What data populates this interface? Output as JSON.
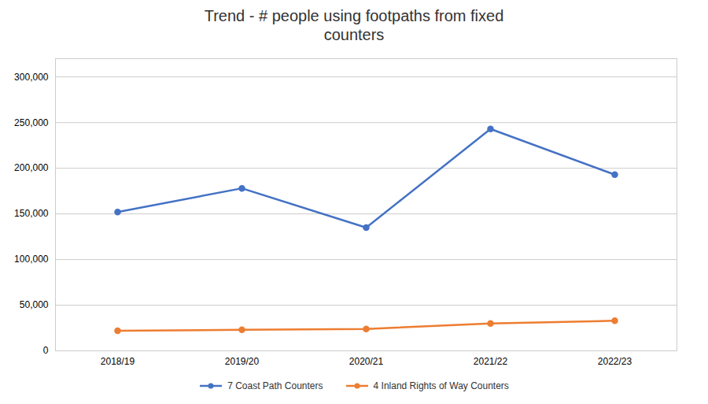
{
  "chart_data": {
    "type": "line",
    "title": "Trend - # people using footpaths from fixed\ncounters",
    "categories": [
      "2018/19",
      "2019/20",
      "2020/21",
      "2021/22",
      "2022/23"
    ],
    "series": [
      {
        "name": "7 Coast Path Counters",
        "color": "#4472C4",
        "marker": "circle",
        "values": [
          152000,
          178000,
          135000,
          243000,
          193000
        ]
      },
      {
        "name": "4 Inland Rights of Way Counters",
        "color": "#ED7D31",
        "marker": "circle",
        "values": [
          22000,
          23000,
          24000,
          30000,
          33000
        ]
      }
    ],
    "ylim": [
      0,
      320000
    ],
    "yticks": [
      0,
      {
        "value": 50000,
        "label": "50,000"
      },
      {
        "value": 100000,
        "label": "100,000"
      },
      {
        "value": 150000,
        "label": "150,000"
      },
      {
        "value": 200000,
        "label": "200,000"
      },
      {
        "value": 250000,
        "label": "250,000"
      },
      {
        "value": 300000,
        "label": "300,000"
      }
    ],
    "grid": true,
    "legend": "bottom"
  }
}
